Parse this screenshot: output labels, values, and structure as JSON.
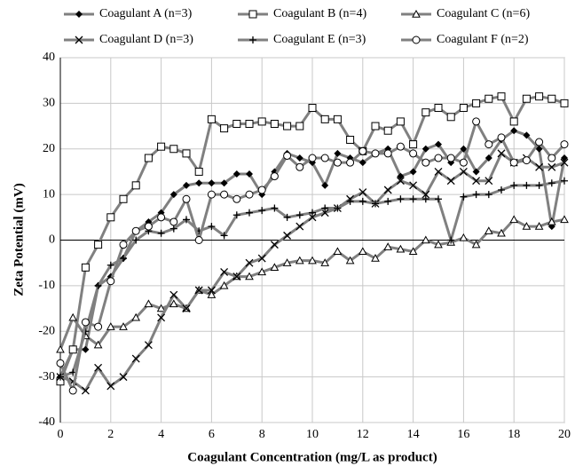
{
  "chart_data": {
    "type": "line",
    "xlabel": "Coagulant Concentration (mg/L as product)",
    "ylabel": "Zeta Potential (mV)",
    "x": [
      0,
      0.5,
      1,
      1.5,
      2,
      2.5,
      3,
      3.5,
      4,
      4.5,
      5,
      5.5,
      6,
      6.5,
      7,
      7.5,
      8,
      8.5,
      9,
      9.5,
      10,
      10.5,
      11,
      11.5,
      12,
      12.5,
      13,
      13.5,
      14,
      14.5,
      15,
      15.5,
      16,
      16.5,
      17,
      17.5,
      18,
      18.5,
      19,
      19.5,
      20
    ],
    "xlim": [
      0,
      20
    ],
    "xticks": [
      0,
      2,
      4,
      6,
      8,
      10,
      12,
      14,
      16,
      18,
      20
    ],
    "ylim": [
      -40,
      40
    ],
    "yticks": [
      -40,
      -30,
      -20,
      -10,
      0,
      10,
      20,
      30,
      40
    ],
    "grid": true,
    "series": [
      {
        "name": "Coagulant A (n=3)",
        "color": "#808080",
        "marker": "diamond",
        "values": [
          -30,
          -24,
          -24,
          -10,
          -8,
          -4,
          2,
          4,
          6,
          10,
          12,
          12.5,
          12.5,
          12.5,
          14.5,
          14.5,
          10,
          15,
          19,
          18,
          17,
          12,
          19,
          18,
          17,
          19,
          20,
          14,
          15,
          20,
          21,
          17,
          20,
          15,
          18,
          22,
          24,
          23,
          20,
          3,
          18
        ]
      },
      {
        "name": "Coagulant B (n=4)",
        "color": "#808080",
        "marker": "square",
        "values": [
          -31,
          -24,
          -6,
          -1,
          5,
          9,
          12,
          18,
          20.5,
          20,
          19,
          15,
          26.5,
          24.5,
          25.5,
          25.5,
          26,
          25.5,
          25,
          25,
          29,
          26.5,
          26.5,
          22,
          19.5,
          25,
          24,
          26,
          21,
          28,
          29,
          27,
          29,
          30,
          31,
          31.5,
          26,
          31,
          31.5,
          31,
          30
        ]
      },
      {
        "name": "Coagulant C (n=6)",
        "color": "#808080",
        "marker": "triangle",
        "values": [
          -24,
          -17,
          -21,
          -23,
          -19,
          -19,
          -17,
          -14,
          -15,
          -14,
          -15,
          -11,
          -12,
          -10,
          -8,
          -8,
          -7,
          -6,
          -5,
          -4.5,
          -4.5,
          -5,
          -2.5,
          -4.5,
          -2.5,
          -4,
          -1.5,
          -2,
          -2.5,
          0,
          -1,
          -0.5,
          0.5,
          -1,
          2,
          1.5,
          4.5,
          3,
          3,
          4,
          4.5
        ]
      },
      {
        "name": "Coagulant D (n=3)",
        "color": "#808080",
        "marker": "x",
        "values": [
          -30,
          -31,
          -33,
          -28,
          -32,
          -30,
          -26,
          -23,
          -17,
          -12,
          -15,
          -11,
          -11,
          -7,
          -8,
          -5,
          -4,
          -1,
          1,
          3,
          5,
          6,
          7,
          9,
          10.5,
          8,
          11,
          13,
          12,
          10,
          15,
          13,
          15,
          13,
          13,
          19,
          17,
          18,
          16,
          16,
          17
        ]
      },
      {
        "name": "Coagulant E (n=3)",
        "color": "#808080",
        "marker": "plus",
        "values": [
          -30,
          -29,
          -20,
          -10,
          -5.5,
          -4,
          0,
          2,
          1.5,
          2.5,
          4.5,
          2,
          3,
          1,
          5.5,
          6,
          6.5,
          7,
          5,
          5.5,
          6,
          7,
          7,
          8.5,
          8.5,
          8,
          8.5,
          9,
          9,
          9,
          9,
          0,
          9.5,
          10,
          10,
          11,
          12,
          12,
          12,
          12.5,
          13
        ]
      },
      {
        "name": "Coagulant F (n=2)",
        "color": "#808080",
        "marker": "circle",
        "values": [
          -27,
          -33,
          -18,
          -19,
          -9,
          -1,
          2,
          3,
          5,
          4,
          9,
          0,
          10,
          10,
          9,
          10,
          11,
          14,
          18.5,
          16,
          18,
          18,
          17,
          17,
          19.5,
          19,
          19,
          20.5,
          19,
          17,
          18,
          18,
          17,
          26,
          21,
          22.5,
          17,
          17.5,
          21.5,
          18,
          21
        ]
      }
    ]
  }
}
